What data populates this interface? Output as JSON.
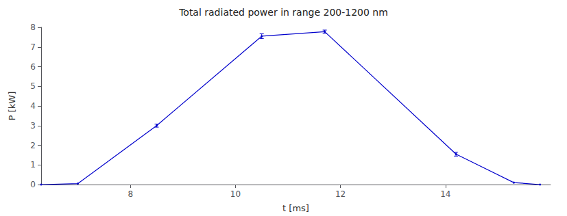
{
  "chart_data": {
    "type": "line",
    "title": "Total radiated power in range 200-1200 nm",
    "xlabel": "t [ms]",
    "ylabel": "P [kW]",
    "x": [
      6.3,
      7.0,
      8.5,
      10.5,
      11.7,
      14.2,
      15.3,
      15.8
    ],
    "values": [
      0.0,
      0.05,
      3.0,
      7.55,
      7.78,
      1.55,
      0.1,
      0.0
    ],
    "yerr": [
      0.0,
      0.0,
      0.08,
      0.12,
      0.08,
      0.1,
      0.0,
      0.0
    ],
    "xlim": [
      6.3,
      16.0
    ],
    "ylim": [
      0.0,
      8.0
    ],
    "xticks": [
      8,
      10,
      12,
      14
    ],
    "yticks": [
      0,
      1,
      2,
      3,
      4,
      5,
      6,
      7,
      8
    ],
    "color": "#0000CC",
    "marker": "circle",
    "grid": false
  }
}
